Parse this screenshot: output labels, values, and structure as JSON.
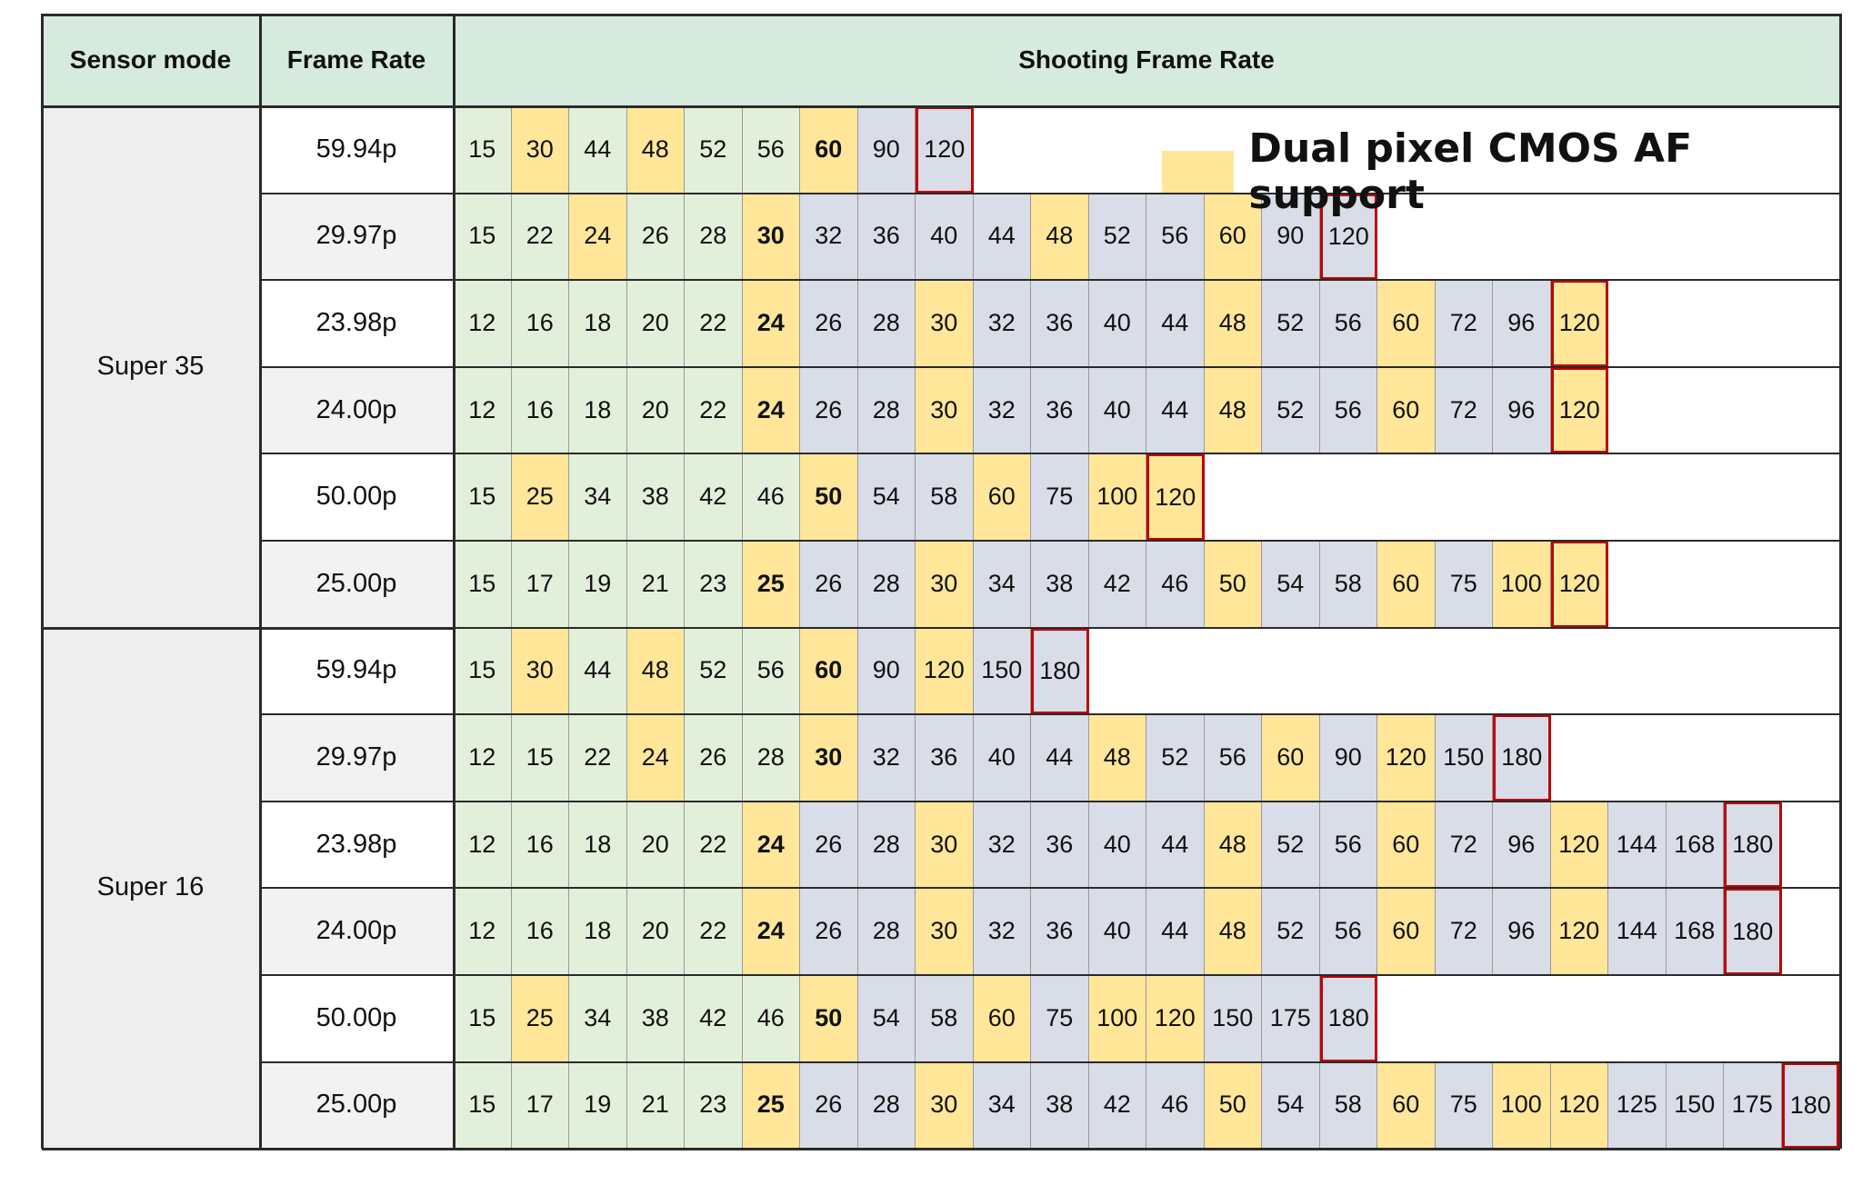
{
  "headers": {
    "sensor_mode": "Sensor mode",
    "frame_rate": "Frame Rate",
    "shooting_frame_rate": "Shooting Frame Rate"
  },
  "legend": {
    "label": "Dual pixel CMOS AF support",
    "color": "#ffe699"
  },
  "colors": {
    "header_bg": "#d6eade",
    "below_project_rate": "#e2efda",
    "af_supported": "#ffe699",
    "above_project_rate": "#d8dde8",
    "max_rate_border": "#c00000"
  },
  "groups": [
    {
      "sensor_mode": "Super 35",
      "rows": [
        {
          "frame_rate": "59.94p",
          "values": [
            "15",
            "30",
            "44",
            "48",
            "52",
            "56",
            "60",
            "90",
            "120"
          ],
          "af": [
            1,
            3,
            6
          ],
          "bold": 6
        },
        {
          "frame_rate": "29.97p",
          "values": [
            "15",
            "22",
            "24",
            "26",
            "28",
            "30",
            "32",
            "36",
            "40",
            "44",
            "48",
            "52",
            "56",
            "60",
            "90",
            "120"
          ],
          "af": [
            2,
            5,
            10,
            13
          ],
          "bold": 5
        },
        {
          "frame_rate": "23.98p",
          "values": [
            "12",
            "16",
            "18",
            "20",
            "22",
            "24",
            "26",
            "28",
            "30",
            "32",
            "36",
            "40",
            "44",
            "48",
            "52",
            "56",
            "60",
            "72",
            "96",
            "120"
          ],
          "af": [
            5,
            8,
            13,
            16,
            19
          ],
          "bold": 5
        },
        {
          "frame_rate": "24.00p",
          "values": [
            "12",
            "16",
            "18",
            "20",
            "22",
            "24",
            "26",
            "28",
            "30",
            "32",
            "36",
            "40",
            "44",
            "48",
            "52",
            "56",
            "60",
            "72",
            "96",
            "120"
          ],
          "af": [
            5,
            8,
            13,
            16,
            19
          ],
          "bold": 5
        },
        {
          "frame_rate": "50.00p",
          "values": [
            "15",
            "25",
            "34",
            "38",
            "42",
            "46",
            "50",
            "54",
            "58",
            "60",
            "75",
            "100",
            "120"
          ],
          "af": [
            1,
            6,
            9,
            11,
            12
          ],
          "bold": 6
        },
        {
          "frame_rate": "25.00p",
          "values": [
            "15",
            "17",
            "19",
            "21",
            "23",
            "25",
            "26",
            "28",
            "30",
            "34",
            "38",
            "42",
            "46",
            "50",
            "54",
            "58",
            "60",
            "75",
            "100",
            "120"
          ],
          "af": [
            5,
            8,
            13,
            16,
            18,
            19
          ],
          "bold": 5
        }
      ]
    },
    {
      "sensor_mode": "Super 16",
      "rows": [
        {
          "frame_rate": "59.94p",
          "values": [
            "15",
            "30",
            "44",
            "48",
            "52",
            "56",
            "60",
            "90",
            "120",
            "150",
            "180"
          ],
          "af": [
            1,
            3,
            6,
            8
          ],
          "bold": 6
        },
        {
          "frame_rate": "29.97p",
          "values": [
            "12",
            "15",
            "22",
            "24",
            "26",
            "28",
            "30",
            "32",
            "36",
            "40",
            "44",
            "48",
            "52",
            "56",
            "60",
            "90",
            "120",
            "150",
            "180"
          ],
          "af": [
            3,
            6,
            11,
            14,
            16
          ],
          "bold": 6
        },
        {
          "frame_rate": "23.98p",
          "values": [
            "12",
            "16",
            "18",
            "20",
            "22",
            "24",
            "26",
            "28",
            "30",
            "32",
            "36",
            "40",
            "44",
            "48",
            "52",
            "56",
            "60",
            "72",
            "96",
            "120",
            "144",
            "168",
            "180"
          ],
          "af": [
            5,
            8,
            13,
            16,
            19
          ],
          "bold": 5
        },
        {
          "frame_rate": "24.00p",
          "values": [
            "12",
            "16",
            "18",
            "20",
            "22",
            "24",
            "26",
            "28",
            "30",
            "32",
            "36",
            "40",
            "44",
            "48",
            "52",
            "56",
            "60",
            "72",
            "96",
            "120",
            "144",
            "168",
            "180"
          ],
          "af": [
            5,
            8,
            13,
            16,
            19
          ],
          "bold": 5
        },
        {
          "frame_rate": "50.00p",
          "values": [
            "15",
            "25",
            "34",
            "38",
            "42",
            "46",
            "50",
            "54",
            "58",
            "60",
            "75",
            "100",
            "120",
            "150",
            "175",
            "180"
          ],
          "af": [
            1,
            6,
            9,
            11,
            12
          ],
          "bold": 6
        },
        {
          "frame_rate": "25.00p",
          "values": [
            "15",
            "17",
            "19",
            "21",
            "23",
            "25",
            "26",
            "28",
            "30",
            "34",
            "38",
            "42",
            "46",
            "50",
            "54",
            "58",
            "60",
            "75",
            "100",
            "120",
            "125",
            "150",
            "175",
            "180"
          ],
          "af": [
            5,
            8,
            13,
            16,
            18,
            19
          ],
          "bold": 5
        }
      ]
    }
  ]
}
